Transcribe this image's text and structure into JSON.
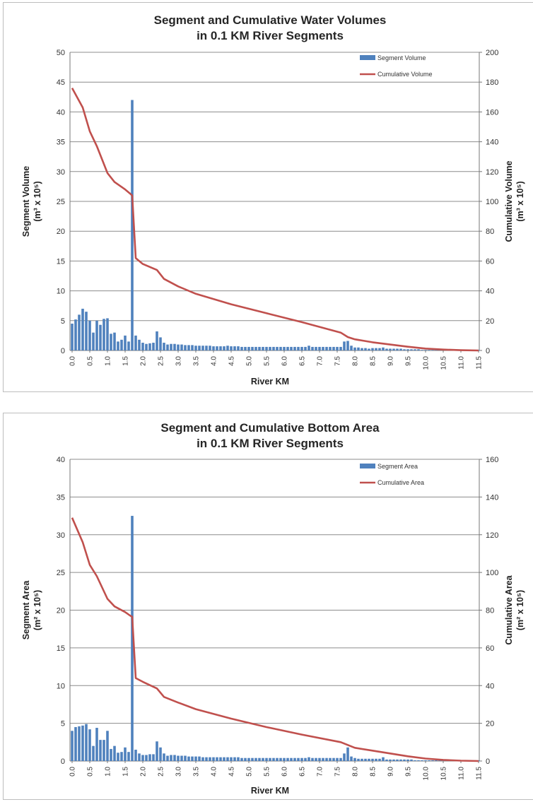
{
  "chart_data": [
    {
      "type": "bar+line",
      "title_lines": [
        "Segment and Cumulative Water Volumes",
        "in 0.1 KM River Segments"
      ],
      "xlabel": "River KM",
      "ylabel_lines": [
        "Segment Volume",
        "(m³ x 10⁵)"
      ],
      "y2label_lines": [
        "Cumulative Volume",
        "(m³ x 10⁵)"
      ],
      "ylim": [
        0,
        50
      ],
      "y_ticks": [
        "0",
        "5",
        "10",
        "15",
        "20",
        "25",
        "30",
        "35",
        "40",
        "45",
        "50"
      ],
      "y2lim": [
        0,
        200
      ],
      "y2_ticks": [
        "0",
        "20",
        "40",
        "60",
        "80",
        "100",
        "120",
        "140",
        "160",
        "180",
        "200"
      ],
      "x_ticks": [
        "0.0",
        "0.5",
        "1.0",
        "1.5",
        "2.0",
        "2.5",
        "3.0",
        "3.5",
        "4.0",
        "4.5",
        "5.0",
        "5.5",
        "6.0",
        "6.5",
        "7.0",
        "7.5",
        "8.0",
        "8.5",
        "9.0",
        "9.5",
        "10.0",
        "10.5",
        "11.0",
        "11.5"
      ],
      "legend": {
        "placement": "top-right",
        "bar": "Segment Volume",
        "line": "Cumulative Volume"
      },
      "colors": {
        "bar": "#4f81bd",
        "line": "#c0504d",
        "grid": "#8c8c8c"
      },
      "bar_series": {
        "name": "Segment Volume",
        "x_start": 0.0,
        "x_step": 0.1,
        "values": [
          4.5,
          5.2,
          6.0,
          7.0,
          6.5,
          5.0,
          3.0,
          5.0,
          4.3,
          5.3,
          5.4,
          2.8,
          3.0,
          1.5,
          1.8,
          2.5,
          1.5,
          42.0,
          2.5,
          1.8,
          1.3,
          1.1,
          1.2,
          1.3,
          3.2,
          2.2,
          1.3,
          1.0,
          1.1,
          1.1,
          1.0,
          1.0,
          0.9,
          0.9,
          0.9,
          0.8,
          0.8,
          0.8,
          0.8,
          0.8,
          0.7,
          0.7,
          0.7,
          0.7,
          0.8,
          0.7,
          0.7,
          0.7,
          0.6,
          0.6,
          0.6,
          0.6,
          0.6,
          0.6,
          0.6,
          0.6,
          0.6,
          0.6,
          0.6,
          0.6,
          0.6,
          0.6,
          0.6,
          0.6,
          0.6,
          0.6,
          0.6,
          0.8,
          0.6,
          0.6,
          0.6,
          0.6,
          0.6,
          0.6,
          0.6,
          0.6,
          0.6,
          1.5,
          1.6,
          0.8,
          0.5,
          0.5,
          0.4,
          0.4,
          0.3,
          0.4,
          0.4,
          0.4,
          0.5,
          0.3,
          0.3,
          0.3,
          0.3,
          0.3,
          0.2,
          0.2,
          0.2,
          0.2,
          0.2,
          0.1,
          0.1,
          0.1,
          0.1,
          0.1,
          0.1,
          0.1,
          0.1,
          0.1,
          0.1,
          0.1,
          0.1,
          0.1,
          0.1,
          0.1,
          0.1,
          0.1
        ]
      },
      "line_series": {
        "name": "Cumulative Volume",
        "axis": "right",
        "points": [
          [
            0.0,
            176
          ],
          [
            0.3,
            163
          ],
          [
            0.5,
            147
          ],
          [
            0.7,
            137
          ],
          [
            1.0,
            119
          ],
          [
            1.2,
            113
          ],
          [
            1.5,
            108
          ],
          [
            1.65,
            105
          ],
          [
            1.7,
            104
          ],
          [
            1.8,
            62
          ],
          [
            2.0,
            58
          ],
          [
            2.4,
            54
          ],
          [
            2.6,
            48
          ],
          [
            3.0,
            43
          ],
          [
            3.5,
            38
          ],
          [
            4.5,
            31
          ],
          [
            5.5,
            25
          ],
          [
            6.5,
            19
          ],
          [
            7.6,
            12
          ],
          [
            7.8,
            9
          ],
          [
            8.0,
            7.5
          ],
          [
            8.5,
            5.5
          ],
          [
            9.0,
            4
          ],
          [
            9.5,
            2.5
          ],
          [
            10.0,
            1.3
          ],
          [
            10.5,
            0.6
          ],
          [
            11.0,
            0.2
          ],
          [
            11.5,
            0
          ]
        ]
      }
    },
    {
      "type": "bar+line",
      "title_lines": [
        "Segment and Cumulative Bottom Area",
        "in 0.1 KM River Segments"
      ],
      "xlabel": "River KM",
      "ylabel_lines": [
        "Segment Area",
        "(m² x 10⁵)"
      ],
      "y2label_lines": [
        "Cumulative Area",
        "(m² x 10⁵)"
      ],
      "ylim": [
        0,
        40
      ],
      "y_ticks": [
        "0",
        "5",
        "10",
        "15",
        "20",
        "25",
        "30",
        "35",
        "40"
      ],
      "y2lim": [
        0,
        160
      ],
      "y2_ticks": [
        "0",
        "20",
        "40",
        "60",
        "80",
        "100",
        "120",
        "140",
        "160"
      ],
      "x_ticks": [
        "0.0",
        "0.5",
        "1.0",
        "1.5",
        "2.0",
        "2.5",
        "3.0",
        "3.5",
        "4.0",
        "4.5",
        "5.0",
        "5.5",
        "6.0",
        "6.5",
        "7.0",
        "7.5",
        "8.0",
        "8.5",
        "9.0",
        "9.5",
        "10.0",
        "10.5",
        "11.0",
        "11.5"
      ],
      "legend": {
        "placement": "top-right",
        "bar": "Segment Area",
        "line": "Cumulative Area"
      },
      "colors": {
        "bar": "#4f81bd",
        "line": "#c0504d",
        "grid": "#8c8c8c"
      },
      "bar_series": {
        "name": "Segment Area",
        "x_start": 0.0,
        "x_step": 0.1,
        "values": [
          4.0,
          4.5,
          4.6,
          4.7,
          4.9,
          4.2,
          2.0,
          4.4,
          2.8,
          2.8,
          4.0,
          1.6,
          2.0,
          1.1,
          1.2,
          1.8,
          1.2,
          32.5,
          1.5,
          1.0,
          0.8,
          0.8,
          0.9,
          0.9,
          2.6,
          1.8,
          1.0,
          0.7,
          0.8,
          0.8,
          0.7,
          0.7,
          0.7,
          0.6,
          0.6,
          0.6,
          0.6,
          0.5,
          0.5,
          0.5,
          0.5,
          0.5,
          0.5,
          0.5,
          0.5,
          0.5,
          0.5,
          0.5,
          0.4,
          0.4,
          0.4,
          0.4,
          0.4,
          0.4,
          0.4,
          0.4,
          0.4,
          0.4,
          0.4,
          0.4,
          0.4,
          0.4,
          0.4,
          0.4,
          0.4,
          0.4,
          0.4,
          0.5,
          0.4,
          0.4,
          0.4,
          0.4,
          0.4,
          0.4,
          0.4,
          0.4,
          0.4,
          1.0,
          1.8,
          0.6,
          0.4,
          0.3,
          0.3,
          0.3,
          0.3,
          0.3,
          0.3,
          0.3,
          0.5,
          0.2,
          0.2,
          0.2,
          0.2,
          0.2,
          0.2,
          0.2,
          0.2,
          0.1,
          0.1,
          0.1,
          0.1,
          0.1,
          0.1,
          0.1,
          0.1,
          0.1,
          0.1,
          0.1,
          0.1,
          0.1,
          0.1,
          0.1,
          0.1,
          0.1,
          0.1,
          0.1
        ]
      },
      "line_series": {
        "name": "Cumulative Area",
        "axis": "right",
        "points": [
          [
            0.0,
            129
          ],
          [
            0.3,
            116
          ],
          [
            0.5,
            104
          ],
          [
            0.7,
            98
          ],
          [
            1.0,
            86
          ],
          [
            1.2,
            82
          ],
          [
            1.5,
            79
          ],
          [
            1.65,
            77
          ],
          [
            1.7,
            76.5
          ],
          [
            1.8,
            44
          ],
          [
            2.0,
            42
          ],
          [
            2.4,
            38.5
          ],
          [
            2.6,
            34
          ],
          [
            3.0,
            31
          ],
          [
            3.5,
            27.5
          ],
          [
            4.5,
            22.5
          ],
          [
            5.5,
            18
          ],
          [
            6.5,
            14
          ],
          [
            7.6,
            10
          ],
          [
            7.8,
            8.5
          ],
          [
            8.0,
            7
          ],
          [
            8.5,
            5.5
          ],
          [
            9.0,
            4
          ],
          [
            9.5,
            2.5
          ],
          [
            10.0,
            1.3
          ],
          [
            10.5,
            0.6
          ],
          [
            11.0,
            0.2
          ],
          [
            11.5,
            0
          ]
        ]
      }
    }
  ]
}
